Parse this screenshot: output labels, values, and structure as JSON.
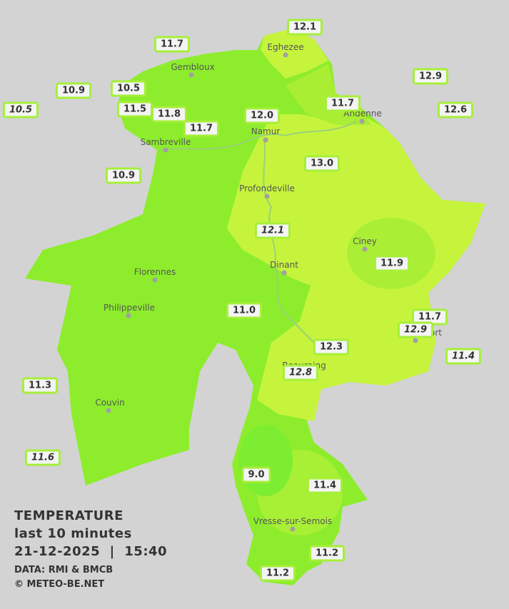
{
  "title": "TEMPERATURE",
  "subtitle": "last 10 minutes",
  "datetime": "21-12-2025  |  15:40",
  "source": "DATA: RMI & BMCB",
  "copyright": "© METEO-BE.NET",
  "cities": [
    "Eghezee",
    "Gembloux",
    "Andenne",
    "Namur",
    "Sambreville",
    "Profondeville",
    "Ciney",
    "Dinant",
    "Florennes",
    "Philippeville",
    "Rochefort",
    "Beauraing",
    "Couvin",
    "Vresse-sur-Semois"
  ],
  "stations": [
    "12.1",
    "11.7",
    "12.9",
    "10.5",
    "10.9",
    "10.5",
    "11.7",
    "12.6",
    "11.5",
    "11.8",
    "12.0",
    "11.7",
    "13.0",
    "10.9",
    "12.1",
    "11.9",
    "11.0",
    "11.7",
    "12.9",
    "12.3",
    "11.4",
    "12.8",
    "11.3",
    "11.6",
    "9.0",
    "11.4",
    "11.2",
    "11.2"
  ]
}
